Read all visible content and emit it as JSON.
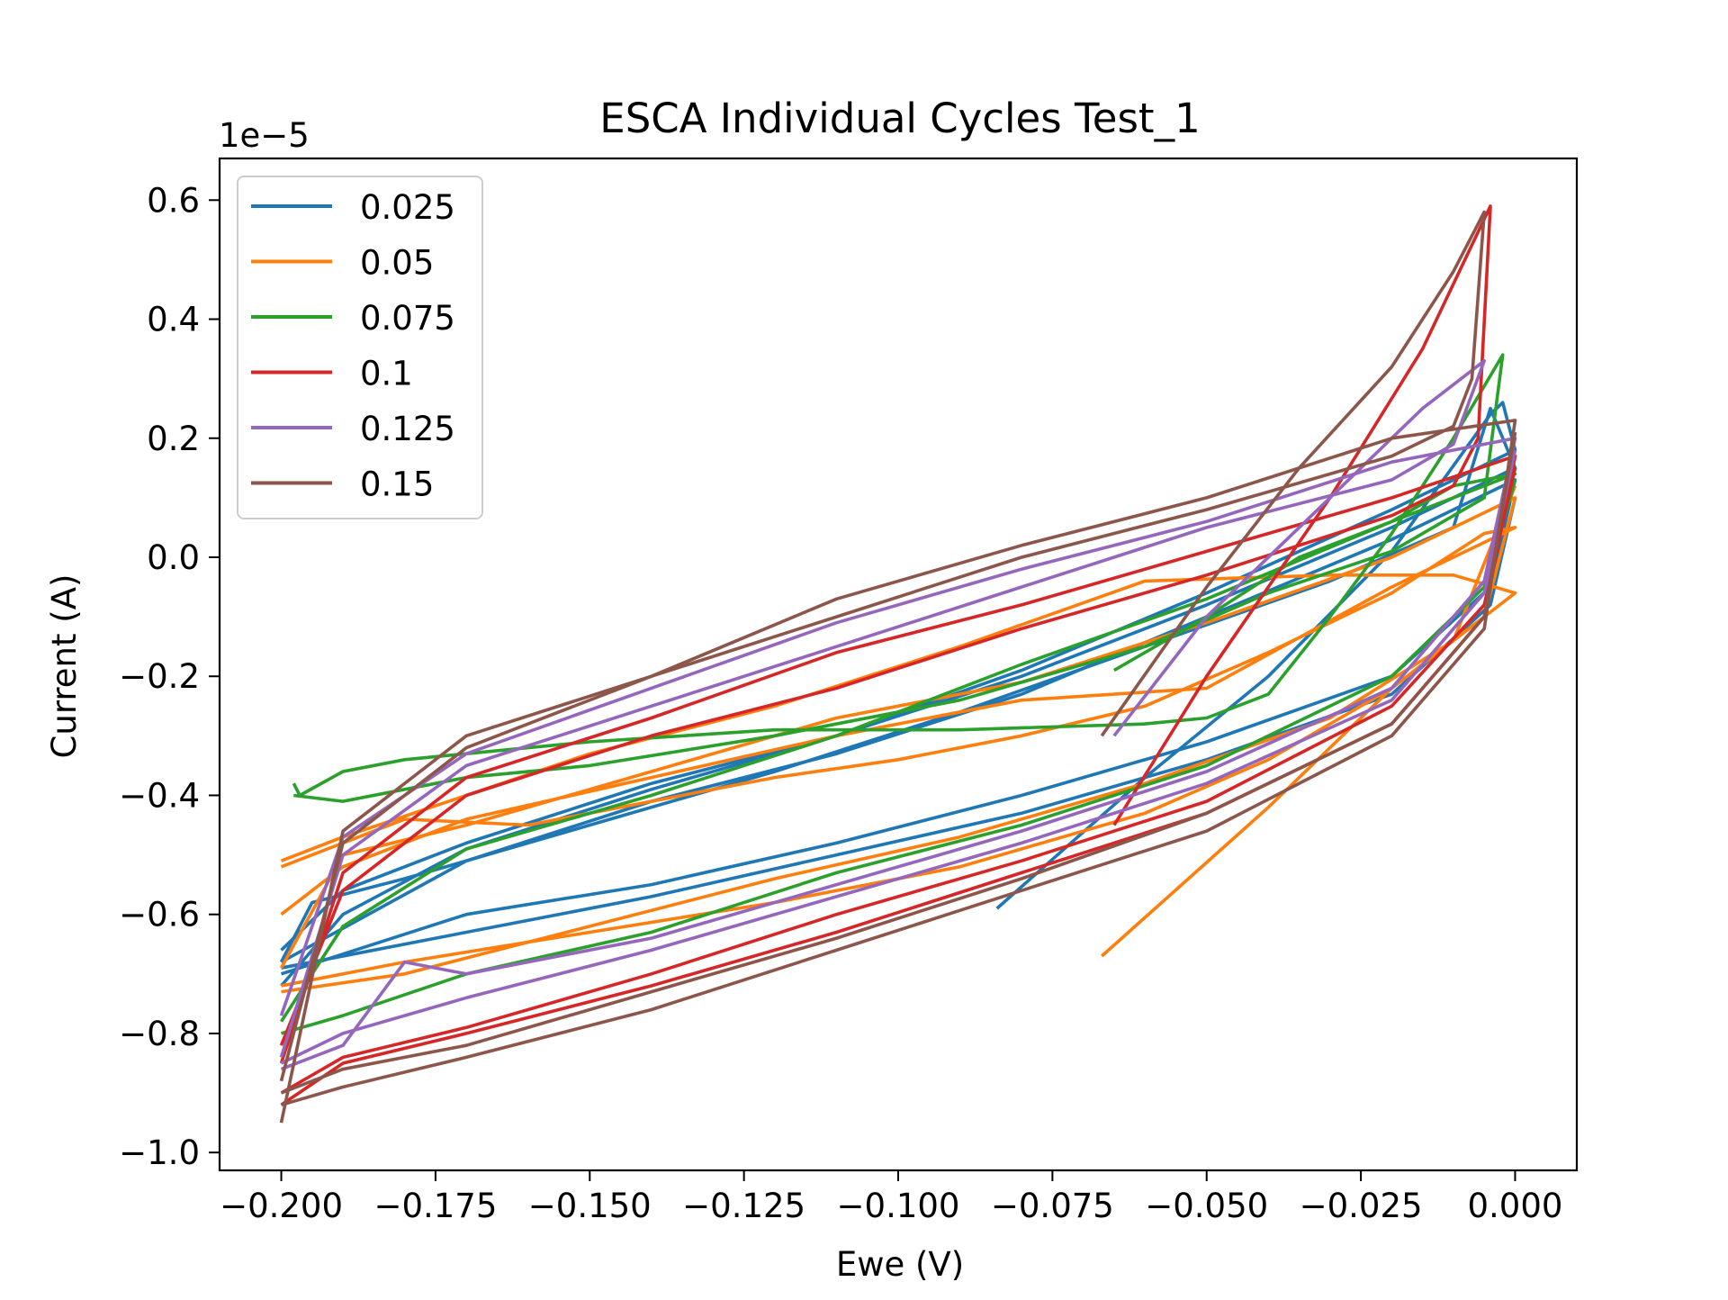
{
  "chart_data": {
    "type": "line",
    "title": "ESCA Individual Cycles Test_1",
    "xlabel": "Ewe (V)",
    "ylabel": "Current (A)",
    "y_offset_label": "1e−5",
    "y_scale_factor": 1e-05,
    "xlim": [
      -0.21,
      0.01
    ],
    "ylim": [
      -1.03,
      0.67
    ],
    "x_ticks": [
      -0.2,
      -0.175,
      -0.15,
      -0.125,
      -0.1,
      -0.075,
      -0.05,
      -0.025,
      0.0
    ],
    "x_tick_labels": [
      "−0.200",
      "−0.175",
      "−0.150",
      "−0.125",
      "−0.100",
      "−0.075",
      "−0.050",
      "−0.025",
      "0.000"
    ],
    "y_ticks": [
      0.6,
      0.4,
      0.2,
      0.0,
      -0.2,
      -0.4,
      -0.6,
      -0.8,
      -1.0
    ],
    "y_tick_labels": [
      "0.6",
      "0.4",
      "0.2",
      "0.0",
      "−0.2",
      "−0.4",
      "−0.6",
      "−0.8",
      "−1.0"
    ],
    "grid": false,
    "legend_position": "upper-left",
    "series": [
      {
        "name": "0.025",
        "color": "#1f77b4",
        "cycles": [
          {
            "x": [
              -0.084,
              -0.06,
              -0.04,
              -0.02,
              -0.004,
              -0.002,
              0.0,
              -0.02,
              -0.05,
              -0.08,
              -0.11,
              -0.14,
              -0.17,
              -0.19,
              -0.2
            ],
            "y": [
              -0.59,
              -0.37,
              -0.2,
              0.01,
              0.24,
              0.26,
              0.18,
              0.08,
              -0.06,
              -0.19,
              -0.3,
              -0.38,
              -0.48,
              -0.56,
              -0.66
            ]
          },
          {
            "x": [
              -0.2,
              -0.195,
              -0.18,
              -0.15,
              -0.12,
              -0.09,
              -0.06,
              -0.03,
              -0.01,
              -0.004,
              0.0,
              -0.02,
              -0.05,
              -0.08,
              -0.11,
              -0.14,
              -0.17,
              -0.19,
              -0.2
            ],
            "y": [
              -0.68,
              -0.58,
              -0.54,
              -0.45,
              -0.36,
              -0.26,
              -0.15,
              -0.04,
              0.05,
              0.25,
              0.15,
              0.05,
              -0.08,
              -0.2,
              -0.3,
              -0.39,
              -0.49,
              -0.6,
              -0.72
            ]
          },
          {
            "x": [
              -0.2,
              -0.17,
              -0.14,
              -0.11,
              -0.08,
              -0.05,
              -0.02,
              -0.004,
              0.0,
              -0.02,
              -0.05,
              -0.08,
              -0.11,
              -0.14,
              -0.17,
              -0.2
            ],
            "y": [
              -0.7,
              -0.6,
              -0.55,
              -0.48,
              -0.4,
              -0.31,
              -0.2,
              -0.05,
              0.13,
              0.03,
              -0.1,
              -0.23,
              -0.33,
              -0.41,
              -0.51,
              -0.68
            ]
          },
          {
            "x": [
              -0.2,
              -0.17,
              -0.14,
              -0.11,
              -0.08,
              -0.05,
              -0.02,
              -0.004,
              0.0
            ],
            "y": [
              -0.69,
              -0.63,
              -0.57,
              -0.5,
              -0.43,
              -0.34,
              -0.23,
              -0.08,
              0.1
            ]
          }
        ]
      },
      {
        "name": "0.05",
        "color": "#ff7f0e",
        "cycles": [
          {
            "x": [
              -0.067,
              -0.04,
              -0.02,
              0.0,
              -0.01,
              -0.03,
              -0.06,
              -0.09,
              -0.12,
              -0.15,
              -0.17,
              -0.19,
              -0.2
            ],
            "y": [
              -0.67,
              -0.42,
              -0.22,
              -0.06,
              -0.03,
              -0.03,
              -0.04,
              -0.15,
              -0.25,
              -0.33,
              -0.4,
              -0.47,
              -0.51
            ]
          },
          {
            "x": [
              -0.2,
              -0.195,
              -0.18,
              -0.16,
              -0.14,
              -0.12,
              -0.1,
              -0.08,
              -0.06,
              -0.04,
              -0.02,
              -0.005,
              0.0,
              -0.02,
              -0.05,
              -0.08,
              -0.11,
              -0.14,
              -0.17,
              -0.19,
              -0.2
            ],
            "y": [
              -0.52,
              -0.5,
              -0.44,
              -0.45,
              -0.41,
              -0.37,
              -0.34,
              -0.3,
              -0.25,
              -0.16,
              -0.06,
              0.04,
              0.05,
              -0.05,
              -0.22,
              -0.24,
              -0.3,
              -0.37,
              -0.44,
              -0.52,
              -0.6
            ]
          },
          {
            "x": [
              -0.2,
              -0.18,
              -0.15,
              -0.12,
              -0.09,
              -0.06,
              -0.04,
              -0.02,
              -0.005,
              0.0,
              -0.02,
              -0.05,
              -0.08,
              -0.11,
              -0.14,
              -0.17,
              -0.19,
              -0.2
            ],
            "y": [
              -0.72,
              -0.68,
              -0.63,
              -0.58,
              -0.52,
              -0.43,
              -0.34,
              -0.22,
              -0.1,
              0.1,
              0.0,
              -0.11,
              -0.21,
              -0.27,
              -0.36,
              -0.45,
              -0.5,
              -0.69
            ]
          },
          {
            "x": [
              -0.2,
              -0.18,
              -0.15,
              -0.12,
              -0.09,
              -0.06,
              -0.03,
              -0.01,
              0.0
            ],
            "y": [
              -0.73,
              -0.7,
              -0.62,
              -0.54,
              -0.47,
              -0.38,
              -0.27,
              -0.14,
              0.12
            ]
          }
        ]
      },
      {
        "name": "0.075",
        "color": "#2ca02c",
        "cycles": [
          {
            "x": [
              -0.198,
              -0.197,
              -0.19,
              -0.18,
              -0.17,
              -0.16,
              -0.15,
              -0.12,
              -0.09,
              -0.06,
              -0.05,
              -0.04,
              -0.03,
              -0.02,
              -0.01,
              -0.002,
              -0.005,
              -0.02,
              -0.04,
              -0.06,
              -0.09,
              -0.12,
              -0.15,
              -0.17,
              -0.19,
              -0.198
            ],
            "y": [
              -0.38,
              -0.4,
              -0.36,
              -0.34,
              -0.33,
              -0.32,
              -0.31,
              -0.29,
              -0.29,
              -0.28,
              -0.27,
              -0.23,
              -0.1,
              0.04,
              0.2,
              0.34,
              0.1,
              0.01,
              -0.06,
              -0.15,
              -0.24,
              -0.3,
              -0.35,
              -0.37,
              -0.41,
              -0.4
            ]
          },
          {
            "x": [
              -0.065,
              -0.05,
              -0.035,
              -0.02,
              -0.01,
              0.0,
              -0.02,
              -0.05,
              -0.08,
              -0.11,
              -0.14,
              -0.17,
              -0.19,
              -0.2
            ],
            "y": [
              -0.19,
              -0.1,
              0.0,
              0.06,
              0.12,
              0.14,
              0.06,
              -0.07,
              -0.18,
              -0.3,
              -0.4,
              -0.49,
              -0.62,
              -0.78
            ]
          },
          {
            "x": [
              -0.2,
              -0.19,
              -0.17,
              -0.14,
              -0.11,
              -0.08,
              -0.05,
              -0.02,
              -0.005,
              0.0
            ],
            "y": [
              -0.8,
              -0.77,
              -0.7,
              -0.63,
              -0.53,
              -0.45,
              -0.35,
              -0.2,
              -0.05,
              0.13
            ]
          }
        ]
      },
      {
        "name": "0.1",
        "color": "#d62728",
        "cycles": [
          {
            "x": [
              -0.065,
              -0.05,
              -0.03,
              -0.015,
              -0.004,
              -0.006,
              -0.01,
              -0.02,
              -0.05,
              -0.08,
              -0.11,
              -0.14,
              -0.17,
              -0.19,
              -0.2
            ],
            "y": [
              -0.45,
              -0.2,
              0.1,
              0.35,
              0.59,
              0.2,
              0.12,
              0.07,
              -0.03,
              -0.12,
              -0.22,
              -0.3,
              -0.4,
              -0.56,
              -0.82
            ]
          },
          {
            "x": [
              -0.2,
              -0.19,
              -0.17,
              -0.14,
              -0.11,
              -0.08,
              -0.05,
              -0.02,
              -0.005,
              0.0,
              -0.02,
              -0.05,
              -0.08,
              -0.11,
              -0.14,
              -0.17,
              -0.19,
              -0.2
            ],
            "y": [
              -0.92,
              -0.85,
              -0.8,
              -0.72,
              -0.63,
              -0.53,
              -0.43,
              -0.28,
              -0.1,
              0.17,
              0.1,
              0.01,
              -0.08,
              -0.16,
              -0.27,
              -0.37,
              -0.53,
              -0.85
            ]
          },
          {
            "x": [
              -0.2,
              -0.19,
              -0.17,
              -0.14,
              -0.11,
              -0.08,
              -0.05,
              -0.02,
              -0.005,
              0.0
            ],
            "y": [
              -0.9,
              -0.84,
              -0.79,
              -0.7,
              -0.6,
              -0.51,
              -0.41,
              -0.25,
              -0.08,
              0.15
            ]
          }
        ]
      },
      {
        "name": "0.125",
        "color": "#9467bd",
        "cycles": [
          {
            "x": [
              -0.065,
              -0.05,
              -0.03,
              -0.015,
              -0.005,
              -0.01,
              -0.02,
              -0.05,
              -0.08,
              -0.11,
              -0.14,
              -0.17,
              -0.19,
              -0.2
            ],
            "y": [
              -0.3,
              -0.1,
              0.1,
              0.25,
              0.33,
              0.19,
              0.13,
              0.05,
              -0.05,
              -0.15,
              -0.25,
              -0.35,
              -0.5,
              -0.84
            ]
          },
          {
            "x": [
              -0.2,
              -0.19,
              -0.18,
              -0.17,
              -0.14,
              -0.11,
              -0.08,
              -0.05,
              -0.02,
              -0.005,
              0.0,
              -0.02,
              -0.05,
              -0.08,
              -0.11,
              -0.14,
              -0.17,
              -0.19,
              -0.2
            ],
            "y": [
              -0.86,
              -0.82,
              -0.68,
              -0.7,
              -0.64,
              -0.55,
              -0.46,
              -0.36,
              -0.22,
              -0.04,
              0.2,
              0.16,
              0.06,
              -0.02,
              -0.11,
              -0.22,
              -0.33,
              -0.47,
              -0.77
            ]
          },
          {
            "x": [
              -0.2,
              -0.19,
              -0.17,
              -0.14,
              -0.11,
              -0.08,
              -0.05,
              -0.02,
              -0.005,
              0.0
            ],
            "y": [
              -0.85,
              -0.8,
              -0.74,
              -0.66,
              -0.57,
              -0.48,
              -0.38,
              -0.24,
              -0.06,
              0.18
            ]
          }
        ]
      },
      {
        "name": "0.15",
        "color": "#8c564b",
        "cycles": [
          {
            "x": [
              -0.067,
              -0.05,
              -0.035,
              -0.02,
              -0.01,
              -0.005,
              -0.007,
              -0.01,
              -0.02,
              -0.05,
              -0.08,
              -0.11,
              -0.14,
              -0.17,
              -0.19,
              -0.2
            ],
            "y": [
              -0.3,
              -0.05,
              0.15,
              0.32,
              0.48,
              0.58,
              0.3,
              0.22,
              0.17,
              0.08,
              0.0,
              -0.1,
              -0.2,
              -0.3,
              -0.46,
              -0.95
            ]
          },
          {
            "x": [
              -0.2,
              -0.19,
              -0.17,
              -0.14,
              -0.11,
              -0.08,
              -0.05,
              -0.02,
              -0.005,
              0.0,
              -0.02,
              -0.05,
              -0.08,
              -0.11,
              -0.14,
              -0.17,
              -0.19,
              -0.2
            ],
            "y": [
              -0.92,
              -0.89,
              -0.84,
              -0.76,
              -0.66,
              -0.56,
              -0.46,
              -0.3,
              -0.12,
              0.23,
              0.2,
              0.1,
              0.02,
              -0.07,
              -0.2,
              -0.32,
              -0.48,
              -0.88
            ]
          },
          {
            "x": [
              -0.2,
              -0.19,
              -0.17,
              -0.14,
              -0.11,
              -0.08,
              -0.05,
              -0.02,
              -0.005,
              0.0
            ],
            "y": [
              -0.9,
              -0.86,
              -0.82,
              -0.73,
              -0.64,
              -0.54,
              -0.43,
              -0.28,
              -0.1,
              0.21
            ]
          }
        ]
      }
    ]
  }
}
